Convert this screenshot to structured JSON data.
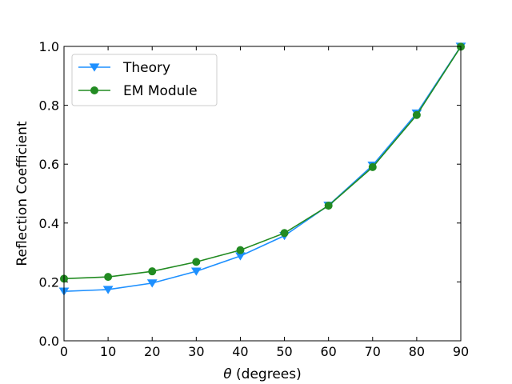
{
  "chart_data": {
    "type": "line",
    "title": "",
    "xlabel_symbol": "θ",
    "xlabel_rest": " (degrees)",
    "ylabel": "Reflection Coefficient",
    "xlim": [
      0,
      90
    ],
    "ylim": [
      0.0,
      1.0
    ],
    "x_ticks": [
      0,
      10,
      20,
      30,
      40,
      50,
      60,
      70,
      80,
      90
    ],
    "x_tick_labels": [
      "0",
      "10",
      "20",
      "30",
      "40",
      "50",
      "60",
      "70",
      "80",
      "90"
    ],
    "y_ticks": [
      0.0,
      0.2,
      0.4,
      0.6,
      0.8,
      1.0
    ],
    "y_tick_labels": [
      "0.0",
      "0.2",
      "0.4",
      "0.6",
      "0.8",
      "1.0"
    ],
    "grid": false,
    "legend_position": "top-left",
    "x": [
      0,
      10,
      20,
      30,
      40,
      50,
      60,
      70,
      80,
      90
    ],
    "series": [
      {
        "name": "Theory",
        "marker": "triangle-down",
        "color": "#1e90ff",
        "values": [
          0.168,
          0.174,
          0.196,
          0.236,
          0.288,
          0.357,
          0.46,
          0.596,
          0.773,
          1.0
        ]
      },
      {
        "name": "EM Module",
        "marker": "circle",
        "color": "#228b22",
        "values": [
          0.211,
          0.217,
          0.236,
          0.268,
          0.308,
          0.366,
          0.459,
          0.59,
          0.767,
          0.999
        ]
      }
    ]
  }
}
